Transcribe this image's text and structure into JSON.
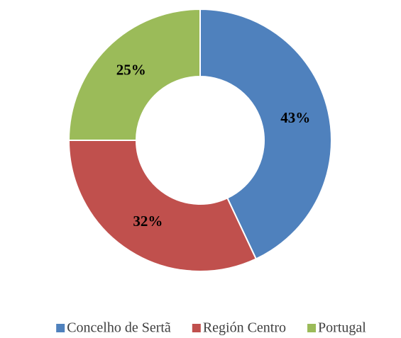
{
  "chart_data": {
    "type": "pie",
    "categories": [
      "Concelho de Sertã",
      "Región Centro",
      "Portugal"
    ],
    "values": [
      43,
      32,
      25
    ],
    "value_labels": [
      "43%",
      "32%",
      "25%"
    ],
    "colors": [
      "#4f81bd",
      "#c0504d",
      "#9bbb59"
    ],
    "legend": "bottom"
  }
}
